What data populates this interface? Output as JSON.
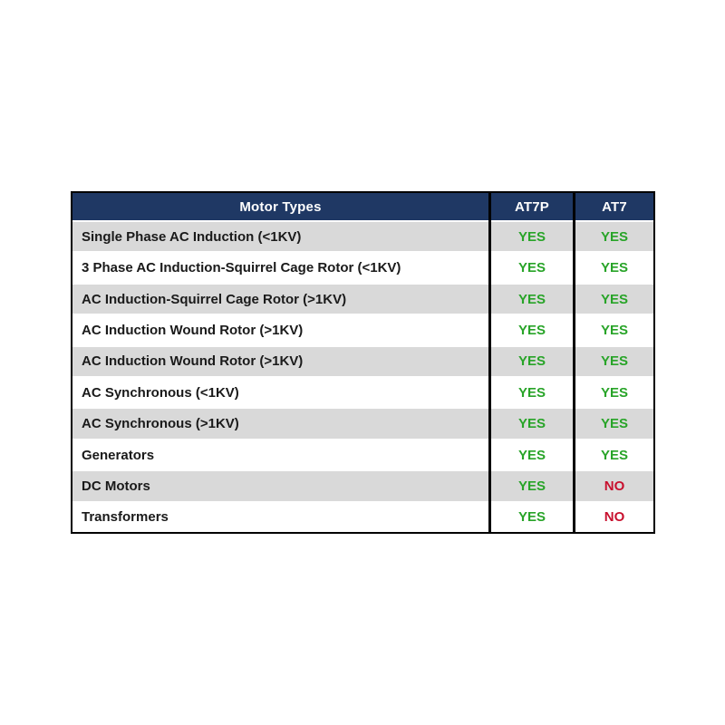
{
  "table": {
    "columns": [
      {
        "label": "Motor Types"
      },
      {
        "label": "AT7P"
      },
      {
        "label": "AT7"
      }
    ],
    "rows": [
      {
        "motor_type": "Single Phase AC Induction (<1KV)",
        "at7p": "YES",
        "at7": "YES"
      },
      {
        "motor_type": "3 Phase AC Induction-Squirrel Cage Rotor (<1KV)",
        "at7p": "YES",
        "at7": "YES"
      },
      {
        "motor_type": "AC Induction-Squirrel Cage Rotor (>1KV)",
        "at7p": "YES",
        "at7": "YES"
      },
      {
        "motor_type": "AC Induction Wound Rotor (>1KV)",
        "at7p": "YES",
        "at7": "YES"
      },
      {
        "motor_type": "AC Induction Wound Rotor (>1KV)",
        "at7p": "YES",
        "at7": "YES"
      },
      {
        "motor_type": "AC Synchronous (<1KV)",
        "at7p": "YES",
        "at7": "YES"
      },
      {
        "motor_type": "AC Synchronous (>1KV)",
        "at7p": "YES",
        "at7": "YES"
      },
      {
        "motor_type": "Generators",
        "at7p": "YES",
        "at7": "YES"
      },
      {
        "motor_type": "DC Motors",
        "at7p": "YES",
        "at7": "NO"
      },
      {
        "motor_type": "Transformers",
        "at7p": "YES",
        "at7": "NO"
      }
    ]
  },
  "colors": {
    "header_bg": "#1F3864",
    "header_text": "#FFFFFF",
    "row_alt_bg": "#D9D9D9",
    "row_bg": "#FFFFFF",
    "yes_text": "#28A428",
    "no_text": "#C8102E",
    "border": "#000000"
  }
}
